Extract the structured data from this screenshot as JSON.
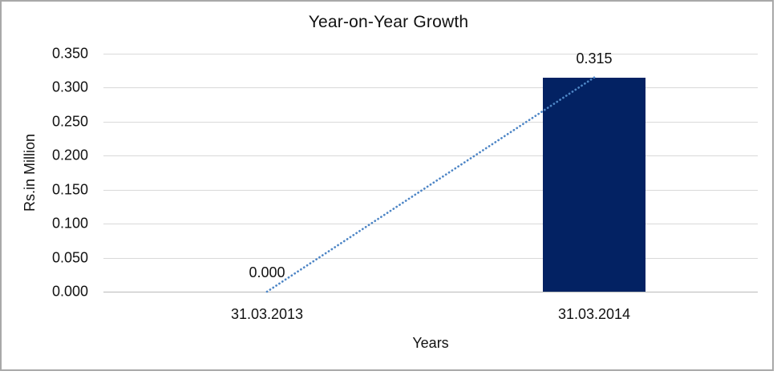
{
  "window": {
    "background": "#ffffff",
    "border_color": "#a8a8a8"
  },
  "chart_data": {
    "type": "bar",
    "title": "Year-on-Year Growth",
    "xlabel": "Years",
    "ylabel": "Rs.in Million",
    "categories": [
      "31.03.2013",
      "31.03.2014"
    ],
    "values": [
      0.0,
      0.315
    ],
    "data_labels": [
      "0.000",
      "0.315"
    ],
    "yticks": [
      0.0,
      0.05,
      0.1,
      0.15,
      0.2,
      0.25,
      0.3,
      0.35
    ],
    "ytick_labels": [
      "0.000",
      "0.050",
      "0.100",
      "0.150",
      "0.200",
      "0.250",
      "0.300",
      "0.350"
    ],
    "ylim": [
      0,
      0.35
    ],
    "grid": true,
    "legend": "none",
    "bar_color": "#032263",
    "trendline": {
      "type": "linear",
      "style": "dotted",
      "color": "#4e86c6",
      "points": [
        [
          0,
          0.0
        ],
        [
          1,
          0.315
        ]
      ]
    },
    "text_color": "#111111",
    "gridline_color": "#d9d9d9",
    "axis_line_color": "#b9b9b9"
  }
}
